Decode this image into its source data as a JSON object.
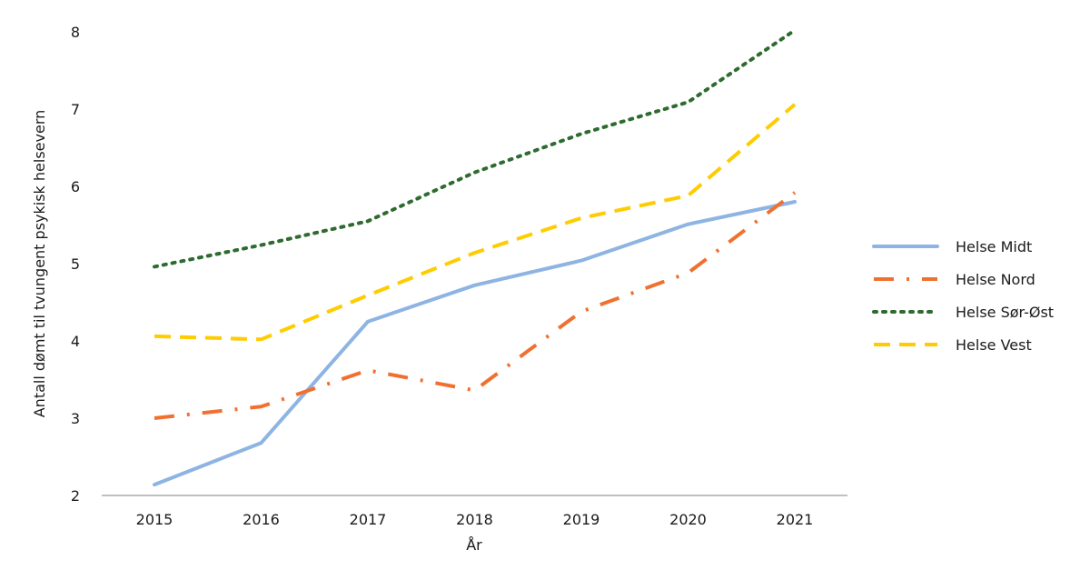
{
  "chart_data": {
    "type": "line",
    "title": "",
    "xlabel": "År",
    "ylabel": "Antall dømt til tvungent psykisk helsevern",
    "categories": [
      "2015",
      "2016",
      "2017",
      "2018",
      "2019",
      "2020",
      "2021"
    ],
    "ylim": [
      2,
      8
    ],
    "yticks": [
      "2",
      "3",
      "4",
      "5",
      "6",
      "7",
      "8"
    ],
    "grid": false,
    "legend_position": "right",
    "series": [
      {
        "name": "Helse Midt",
        "color": "#8db4e2",
        "dash": "solid",
        "values": [
          2.14,
          2.68,
          4.25,
          4.72,
          5.04,
          5.51,
          5.8
        ]
      },
      {
        "name": "Helse Nord",
        "color": "#f07030",
        "dash": "dash-dot",
        "values": [
          3.0,
          3.15,
          3.62,
          3.36,
          4.38,
          4.88,
          5.92
        ]
      },
      {
        "name": "Helse Sør-Øst",
        "color": "#2e6b30",
        "dash": "dotted",
        "values": [
          4.96,
          5.24,
          5.55,
          6.18,
          6.68,
          7.09,
          8.02
        ]
      },
      {
        "name": "Helse Vest",
        "color": "#ffcc00",
        "dash": "dashed",
        "values": [
          4.06,
          4.02,
          4.59,
          5.14,
          5.59,
          5.88,
          7.06
        ]
      }
    ]
  }
}
